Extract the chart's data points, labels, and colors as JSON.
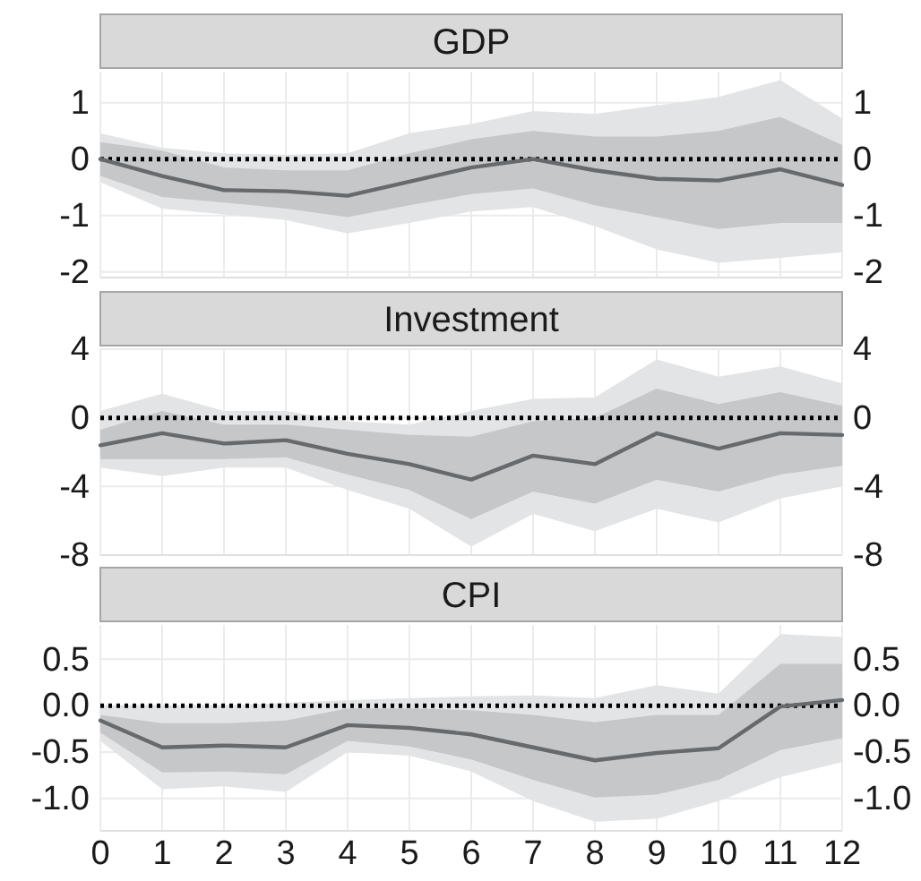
{
  "chart_data": [
    {
      "type": "line",
      "title": "GDP",
      "x": [
        0,
        1,
        2,
        3,
        4,
        5,
        6,
        7,
        8,
        9,
        10,
        11,
        12
      ],
      "xlim": [
        0,
        12
      ],
      "xticks": [
        0,
        1,
        2,
        3,
        4,
        5,
        6,
        7,
        8,
        9,
        10,
        11,
        12
      ],
      "ylim": [
        -2.1,
        1.55
      ],
      "yticks": [
        -2,
        -1,
        0,
        1
      ],
      "y2lim": [
        -2.1,
        1.55
      ],
      "y2ticks": [
        -2,
        -1,
        0,
        1
      ],
      "tick_labels": "y",
      "grid": true,
      "ref_lines": [
        {
          "axis": "y",
          "value": 0,
          "color": "#000000",
          "line_style": "dotted"
        }
      ],
      "series": [
        {
          "color": "#e3e4e6",
          "values": [
            null,
            null,
            null,
            null,
            null,
            null,
            null,
            null,
            null,
            null,
            null,
            null,
            null
          ],
          "lower": [
            -0.41,
            -0.88,
            -0.98,
            -1.08,
            -1.32,
            -1.13,
            -0.93,
            -0.85,
            -1.19,
            -1.6,
            -1.84,
            -1.75,
            -1.65
          ],
          "upper": [
            0.46,
            0.2,
            0.1,
            0.08,
            0.1,
            0.46,
            0.62,
            0.85,
            0.8,
            0.95,
            1.1,
            1.4,
            0.72
          ]
        },
        {
          "color": "#c5c7c9",
          "values": [
            null,
            null,
            null,
            null,
            null,
            null,
            null,
            null,
            null,
            null,
            null,
            null,
            null
          ],
          "lower": [
            -0.3,
            -0.67,
            -0.77,
            -0.88,
            -1.03,
            -0.82,
            -0.62,
            -0.52,
            -0.82,
            -1.03,
            -1.24,
            -1.13,
            -1.13
          ],
          "upper": [
            0.3,
            0.15,
            -0.15,
            -0.2,
            -0.2,
            0.1,
            0.35,
            0.5,
            0.4,
            0.4,
            0.5,
            0.75,
            0.25
          ]
        },
        {
          "color": "#666a6d",
          "values": [
            0,
            -0.3,
            -0.55,
            -0.57,
            -0.65,
            -0.4,
            -0.15,
            0,
            -0.2,
            -0.35,
            -0.38,
            -0.18,
            -0.46
          ]
        }
      ]
    },
    {
      "type": "line",
      "title": "Investment",
      "x": [
        0,
        1,
        2,
        3,
        4,
        5,
        6,
        7,
        8,
        9,
        10,
        11,
        12
      ],
      "xlim": [
        0,
        12
      ],
      "xticks": [
        0,
        1,
        2,
        3,
        4,
        5,
        6,
        7,
        8,
        9,
        10,
        11,
        12
      ],
      "ylim": [
        -8,
        4
      ],
      "yticks": [
        -8,
        -4,
        0,
        4
      ],
      "y2lim": [
        -8,
        4
      ],
      "y2ticks": [
        -8,
        -4,
        0,
        4
      ],
      "tick_labels": "y",
      "grid": true,
      "ref_lines": [
        {
          "axis": "y",
          "value": 0,
          "color": "#000000",
          "line_style": "dotted"
        }
      ],
      "series": [
        {
          "color": "#e3e4e6",
          "values": [
            null,
            null,
            null,
            null,
            null,
            null,
            null,
            null,
            null,
            null,
            null,
            null,
            null
          ],
          "lower": [
            -2.9,
            -3.4,
            -2.9,
            -2.9,
            -4.2,
            -5.3,
            -7.5,
            -5.6,
            -6.6,
            -5.3,
            -6.1,
            -4.7,
            -4.0
          ],
          "upper": [
            0.4,
            1.4,
            0.4,
            0.4,
            -0.2,
            -0.4,
            0.4,
            1.1,
            1.2,
            3.4,
            2.4,
            3.0,
            2.0
          ]
        },
        {
          "color": "#c5c7c9",
          "values": [
            null,
            null,
            null,
            null,
            null,
            null,
            null,
            null,
            null,
            null,
            null,
            null,
            null
          ],
          "lower": [
            -2.4,
            -2.4,
            -2.4,
            -2.3,
            -3.3,
            -4.2,
            -5.9,
            -4.3,
            -5.0,
            -3.6,
            -4.3,
            -3.3,
            -2.8
          ],
          "upper": [
            -0.7,
            0.4,
            -0.4,
            -0.4,
            -0.7,
            -1.0,
            -1.1,
            -0.2,
            0,
            1.7,
            0.8,
            1.5,
            0.7
          ]
        },
        {
          "color": "#666a6d",
          "values": [
            -1.6,
            -0.9,
            -1.5,
            -1.3,
            -2.1,
            -2.7,
            -3.6,
            -2.2,
            -2.7,
            -0.9,
            -1.8,
            -0.9,
            -1.0
          ]
        }
      ]
    },
    {
      "type": "line",
      "title": "CPI",
      "x": [
        0,
        1,
        2,
        3,
        4,
        5,
        6,
        7,
        8,
        9,
        10,
        11,
        12
      ],
      "xlim": [
        0,
        12
      ],
      "xticks": [
        0,
        1,
        2,
        3,
        4,
        5,
        6,
        7,
        8,
        9,
        10,
        11,
        12
      ],
      "ylim": [
        -1.35,
        0.87
      ],
      "yticks": [
        {
          "value": -1,
          "label": "-1.0"
        },
        -0.5,
        {
          "value": 0,
          "label": "0.0"
        },
        0.5
      ],
      "y2lim": [
        -1.35,
        0.87
      ],
      "y2ticks": [
        {
          "value": -1,
          "label": "-1.0"
        },
        -0.5,
        {
          "value": 0,
          "label": "0.0"
        },
        0.5
      ],
      "grid": true,
      "ref_lines": [
        {
          "axis": "y",
          "value": 0,
          "color": "#000000",
          "line_style": "dotted"
        }
      ],
      "series": [
        {
          "color": "#e3e4e6",
          "values": [
            null,
            null,
            null,
            null,
            null,
            null,
            null,
            null,
            null,
            null,
            null,
            null,
            null
          ],
          "lower": [
            -0.38,
            -0.9,
            -0.87,
            -0.93,
            -0.5,
            -0.54,
            -0.71,
            -1.03,
            -1.25,
            -1.22,
            -1.03,
            -0.77,
            -0.61
          ],
          "upper": [
            0,
            0,
            0,
            0.03,
            0.06,
            0.08,
            0.1,
            0.11,
            0.08,
            0.22,
            0.13,
            0.77,
            0.74
          ]
        },
        {
          "color": "#c5c7c9",
          "values": [
            null,
            null,
            null,
            null,
            null,
            null,
            null,
            null,
            null,
            null,
            null,
            null,
            null
          ],
          "lower": [
            -0.29,
            -0.72,
            -0.71,
            -0.74,
            -0.38,
            -0.44,
            -0.58,
            -0.8,
            -0.99,
            -0.96,
            -0.8,
            -0.48,
            -0.35
          ],
          "upper": [
            -0.1,
            -0.19,
            -0.19,
            -0.16,
            -0.03,
            -0.03,
            -0.05,
            -0.1,
            -0.18,
            -0.1,
            -0.1,
            0.45,
            0.45
          ]
        },
        {
          "color": "#666a6d",
          "values": [
            -0.16,
            -0.45,
            -0.43,
            -0.45,
            -0.21,
            -0.24,
            -0.31,
            -0.45,
            -0.59,
            -0.51,
            -0.46,
            -0.01,
            0.06
          ]
        }
      ]
    }
  ]
}
